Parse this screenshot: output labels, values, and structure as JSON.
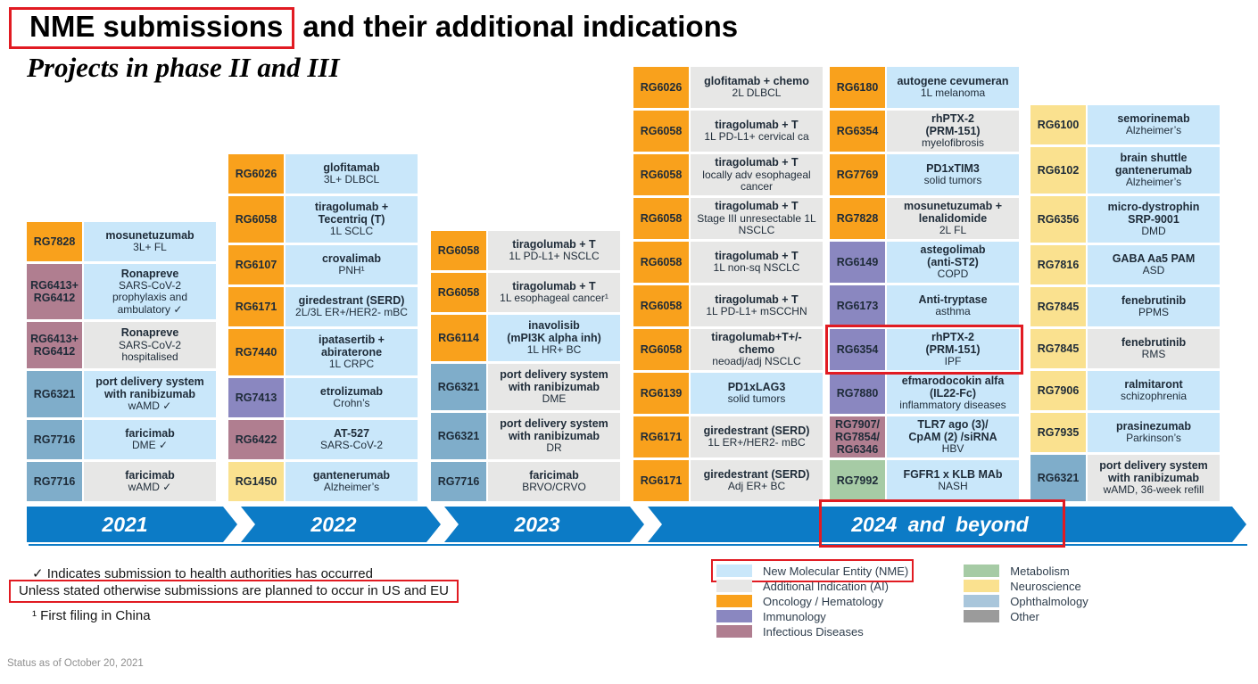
{
  "title": {
    "highlight": "NME submissions",
    "rest": " and their additional indications"
  },
  "subtitle": "Projects in phase II and III",
  "colors": {
    "nme": "#C9E7FA",
    "ai": "#E7E7E6",
    "oncology": "#F9A11C",
    "immunology": "#8A87C0",
    "infectious": "#B07E90",
    "metabolism": "#A6CBA5",
    "neuroscience": "#FAE18F",
    "ophthalmology": "#7FADCA",
    "ophthalmology_legend": "#A9C6DB",
    "other": "#9B9B9B",
    "timeline_blue": "#0C7BC6",
    "highlight_red": "#E11B22"
  },
  "columns": [
    {
      "cells": [
        {
          "code": "RG7828",
          "area": "oncology",
          "name": "mosunetuzumab",
          "detail": "3L+ FL",
          "kind": "nme"
        },
        {
          "code": "RG6413+\nRG6412",
          "area": "infectious",
          "name": "Ronapreve",
          "detail": "SARS-CoV-2\nprophylaxis and\nambulatory ✓",
          "kind": "nme"
        },
        {
          "code": "RG6413+\nRG6412",
          "area": "infectious",
          "name": "Ronapreve",
          "detail": "SARS-CoV-2\nhospitalised",
          "kind": "ai"
        },
        {
          "code": "RG6321",
          "area": "ophthalmology",
          "name": "port delivery system\nwith ranibizumab",
          "detail": "wAMD ✓",
          "kind": "nme"
        },
        {
          "code": "RG7716",
          "area": "ophthalmology",
          "name": "faricimab",
          "detail": "DME ✓",
          "kind": "nme"
        },
        {
          "code": "RG7716",
          "area": "ophthalmology",
          "name": "faricimab",
          "detail": "wAMD ✓",
          "kind": "ai"
        }
      ]
    },
    {
      "cells": [
        {
          "code": "RG6026",
          "area": "oncology",
          "name": "glofitamab",
          "detail": "3L+ DLBCL",
          "kind": "nme"
        },
        {
          "code": "RG6058",
          "area": "oncology",
          "name": "tiragolumab +\nTecentriq (T)",
          "detail": "1L SCLC",
          "kind": "nme"
        },
        {
          "code": "RG6107",
          "area": "oncology",
          "name": "crovalimab",
          "detail": "PNH¹",
          "kind": "nme"
        },
        {
          "code": "RG6171",
          "area": "oncology",
          "name": "giredestrant (SERD)",
          "detail": "2L/3L ER+/HER2- mBC",
          "kind": "nme"
        },
        {
          "code": "RG7440",
          "area": "oncology",
          "name": "ipatasertib +\nabiraterone",
          "detail": "1L CRPC",
          "kind": "nme"
        },
        {
          "code": "RG7413",
          "area": "immunology",
          "name": "etrolizumab",
          "detail": "Crohn’s",
          "kind": "nme"
        },
        {
          "code": "RG6422",
          "area": "infectious",
          "name": "AT-527",
          "detail": "SARS-CoV-2",
          "kind": "nme"
        },
        {
          "code": "RG1450",
          "area": "neuroscience",
          "name": "gantenerumab",
          "detail": "Alzheimer’s",
          "kind": "nme"
        }
      ]
    },
    {
      "cells": [
        {
          "code": "RG6058",
          "area": "oncology",
          "name": "tiragolumab + T",
          "detail": "1L PD-L1+ NSCLC",
          "kind": "ai"
        },
        {
          "code": "RG6058",
          "area": "oncology",
          "name": "tiragolumab + T",
          "detail": "1L esophageal cancer¹",
          "kind": "ai"
        },
        {
          "code": "RG6114",
          "area": "oncology",
          "name": "inavolisib\n(mPI3K alpha inh)",
          "detail": "1L HR+ BC",
          "kind": "nme"
        },
        {
          "code": "RG6321",
          "area": "ophthalmology",
          "name": "port delivery system\nwith ranibizumab",
          "detail": "DME",
          "kind": "ai"
        },
        {
          "code": "RG6321",
          "area": "ophthalmology",
          "name": "port delivery system\nwith ranibizumab",
          "detail": "DR",
          "kind": "ai"
        },
        {
          "code": "RG7716",
          "area": "ophthalmology",
          "name": "faricimab",
          "detail": "BRVO/CRVO",
          "kind": "ai"
        }
      ]
    },
    {
      "cells": [
        {
          "code": "RG6026",
          "area": "oncology",
          "name": "glofitamab + chemo",
          "detail": "2L DLBCL",
          "kind": "ai"
        },
        {
          "code": "RG6058",
          "area": "oncology",
          "name": "tiragolumab + T",
          "detail": "1L PD-L1+ cervical ca",
          "kind": "ai"
        },
        {
          "code": "RG6058",
          "area": "oncology",
          "name": "tiragolumab + T",
          "detail": "locally adv esophageal\ncancer",
          "kind": "ai"
        },
        {
          "code": "RG6058",
          "area": "oncology",
          "name": "tiragolumab + T",
          "detail": "Stage III unresectable 1L\nNSCLC",
          "kind": "ai"
        },
        {
          "code": "RG6058",
          "area": "oncology",
          "name": "tiragolumab + T",
          "detail": "1L non-sq NSCLC",
          "kind": "ai"
        },
        {
          "code": "RG6058",
          "area": "oncology",
          "name": "tiragolumab + T",
          "detail": "1L PD-L1+ mSCCHN",
          "kind": "ai"
        },
        {
          "code": "RG6058",
          "area": "oncology",
          "name": "tiragolumab+T+/-\nchemo",
          "detail": "neoadj/adj NSCLC",
          "kind": "ai"
        },
        {
          "code": "RG6139",
          "area": "oncology",
          "name": "PD1xLAG3",
          "detail": "solid tumors",
          "kind": "nme"
        },
        {
          "code": "RG6171",
          "area": "oncology",
          "name": "giredestrant (SERD)",
          "detail": "1L ER+/HER2- mBC",
          "kind": "ai"
        },
        {
          "code": "RG6171",
          "area": "oncology",
          "name": "giredestrant (SERD)",
          "detail": "Adj ER+ BC",
          "kind": "ai"
        }
      ]
    },
    {
      "cells": [
        {
          "code": "RG6180",
          "area": "oncology",
          "name": "autogene cevumeran",
          "detail": "1L melanoma",
          "kind": "nme"
        },
        {
          "code": "RG6354",
          "area": "oncology",
          "name": "rhPTX-2\n(PRM-151)",
          "detail": "myelofibrosis",
          "kind": "ai"
        },
        {
          "code": "RG7769",
          "area": "oncology",
          "name": "PD1xTIM3",
          "detail": "solid tumors",
          "kind": "nme"
        },
        {
          "code": "RG7828",
          "area": "oncology",
          "name": "mosunetuzumab +\nlenalidomide",
          "detail": "2L FL",
          "kind": "ai"
        },
        {
          "code": "RG6149",
          "area": "immunology",
          "name": "astegolimab\n(anti-ST2)",
          "detail": "COPD",
          "kind": "nme"
        },
        {
          "code": "RG6173",
          "area": "immunology",
          "name": "Anti-tryptase",
          "detail": "asthma",
          "kind": "nme"
        },
        {
          "code": "RG6354",
          "area": "immunology",
          "name": "rhPTX-2\n(PRM-151)",
          "detail": "IPF",
          "kind": "nme",
          "boxed": true
        },
        {
          "code": "RG7880",
          "area": "immunology",
          "name": "efmarodocokin alfa\n(IL22-Fc)",
          "detail": "inflammatory diseases",
          "kind": "nme"
        },
        {
          "code": "RG7907/\nRG7854/\nRG6346",
          "area": "infectious",
          "name": "TLR7 ago (3)/\nCpAM (2) /siRNA",
          "detail": "HBV",
          "kind": "nme"
        },
        {
          "code": "RG7992",
          "area": "metabolism",
          "name": "FGFR1 x KLB MAb",
          "detail": "NASH",
          "kind": "nme"
        }
      ]
    },
    {
      "cells": [
        {
          "code": "RG6100",
          "area": "neuroscience",
          "name": "semorinemab",
          "detail": "Alzheimer’s",
          "kind": "nme"
        },
        {
          "code": "RG6102",
          "area": "neuroscience",
          "name": "brain shuttle\ngantenerumab",
          "detail": "Alzheimer’s",
          "kind": "nme"
        },
        {
          "code": "RG6356",
          "area": "neuroscience",
          "name": "micro-dystrophin\nSRP-9001",
          "detail": "DMD",
          "kind": "nme"
        },
        {
          "code": "RG7816",
          "area": "neuroscience",
          "name": "GABA Aa5 PAM",
          "detail": "ASD",
          "kind": "nme"
        },
        {
          "code": "RG7845",
          "area": "neuroscience",
          "name": "fenebrutinib",
          "detail": "PPMS",
          "kind": "nme"
        },
        {
          "code": "RG7845",
          "area": "neuroscience",
          "name": "fenebrutinib",
          "detail": "RMS",
          "kind": "ai"
        },
        {
          "code": "RG7906",
          "area": "neuroscience",
          "name": "ralmitaront",
          "detail": "schizophrenia",
          "kind": "nme"
        },
        {
          "code": "RG7935",
          "area": "neuroscience",
          "name": "prasinezumab",
          "detail": "Parkinson’s",
          "kind": "nme"
        },
        {
          "code": "RG6321",
          "area": "ophthalmology",
          "name": "port delivery system\nwith ranibizumab",
          "detail": "wAMD, 36-week refill",
          "kind": "ai"
        }
      ]
    }
  ],
  "timeline": {
    "years": [
      "2021",
      "2022",
      "2023",
      "2024 and beyond"
    ]
  },
  "legend": {
    "col_a": [
      {
        "key": "nme",
        "label": "New Molecular Entity (NME)",
        "boxed": true
      },
      {
        "key": "ai",
        "label": "Additional Indication (AI)"
      },
      {
        "key": "oncology",
        "label": "Oncology / Hematology"
      },
      {
        "key": "immunology",
        "label": "Immunology"
      },
      {
        "key": "infectious",
        "label": "Infectious Diseases"
      }
    ],
    "col_b": [
      {
        "key": "metabolism",
        "label": "Metabolism"
      },
      {
        "key": "neuroscience",
        "label": "Neuroscience"
      },
      {
        "key": "ophthalmology_legend",
        "label": "Ophthalmology"
      },
      {
        "key": "other",
        "label": "Other"
      }
    ]
  },
  "footnotes": {
    "check": "✓ Indicates submission to health authorities has occurred",
    "us_eu": "Unless stated otherwise submissions are planned to occur in US and EU",
    "china": "¹ First filing in China"
  },
  "status": "Status as of October 20, 2021"
}
